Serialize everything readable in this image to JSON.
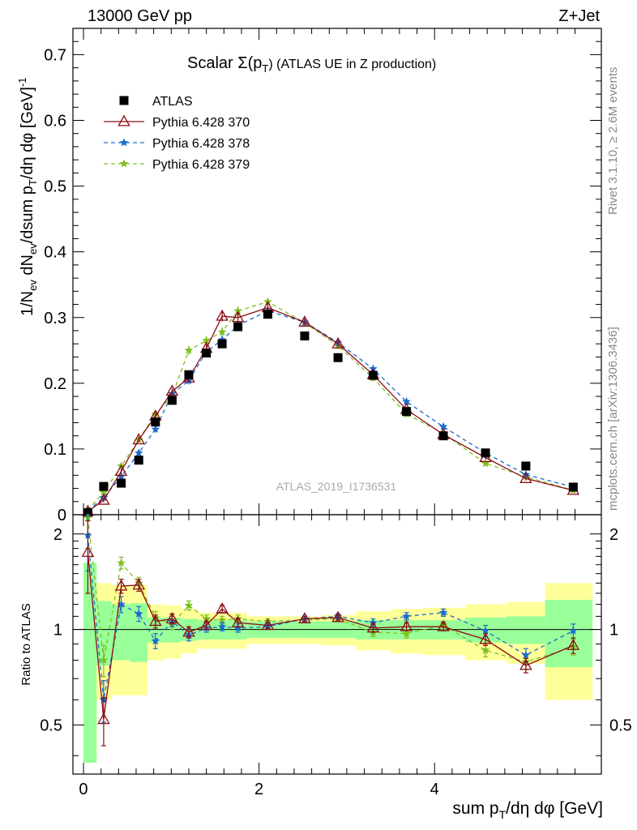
{
  "header": {
    "left": "13000 GeV pp",
    "right": "Z+Jet"
  },
  "chart_data": {
    "type": "scatter",
    "title": "Scalar Σ(pₜ) (ATLAS UE in Z production)",
    "title_main": "Scalar Σ(p",
    "title_sub": "T",
    "title_tail": ") (ATLAS UE in Z production)",
    "xlabel": "sum p",
    "xlabel_sub": "T",
    "xlabel_tail": "/dη dφ [GeV]",
    "ylabel": "1/N",
    "ylabel_parts": [
      "1/N",
      "ev",
      " dN",
      "ev",
      "/dsum p",
      "T",
      "/dη dφ  [GeV]",
      "-1"
    ],
    "ratio_ylabel": "Ratio to ATLAS",
    "watermark": "ATLAS_2019_I1736531",
    "side_label_top": "Rivet 3.1.10, ≥ 2.6M events",
    "side_label_bottom": "mcplots.cern.ch [arXiv:1306.3436]",
    "xlim": [
      -0.12,
      5.9
    ],
    "ylim": [
      0,
      0.74
    ],
    "ratio_ylim": [
      0.35,
      2.3
    ],
    "x_ticks": [
      "0",
      "2",
      "4"
    ],
    "y_ticks": [
      "0",
      "0.1",
      "0.2",
      "0.3",
      "0.4",
      "0.5",
      "0.6",
      "0.7"
    ],
    "ratio_ticks": [
      "0.5",
      "1",
      "2"
    ],
    "grid": false,
    "legend": "top-left",
    "x": [
      0.05,
      0.23,
      0.43,
      0.63,
      0.82,
      1.01,
      1.2,
      1.4,
      1.58,
      1.76,
      2.1,
      2.52,
      2.9,
      3.3,
      3.68,
      4.1,
      4.58,
      5.04,
      5.58
    ],
    "bin_edges": [
      0.0,
      0.15,
      0.32,
      0.53,
      0.73,
      0.92,
      1.11,
      1.3,
      1.5,
      1.67,
      1.86,
      2.34,
      2.71,
      3.1,
      3.5,
      3.87,
      4.35,
      4.82,
      5.26,
      5.8
    ],
    "series": [
      {
        "name": "ATLAS",
        "color": "#000000",
        "marker": "square",
        "values": [
          0.003,
          0.043,
          0.048,
          0.083,
          0.141,
          0.174,
          0.213,
          0.246,
          0.26,
          0.286,
          0.305,
          0.272,
          0.239,
          0.212,
          0.157,
          0.12,
          0.094,
          0.074,
          0.042
        ]
      },
      {
        "name": "Pythia 6.428 370",
        "color": "#8b0d16",
        "marker": "triangle",
        "line": "solid",
        "values": [
          0.005,
          0.022,
          0.066,
          0.114,
          0.15,
          0.188,
          0.208,
          0.253,
          0.302,
          0.3,
          0.315,
          0.293,
          0.26,
          0.213,
          0.16,
          0.122,
          0.087,
          0.055,
          0.037
        ],
        "errors": [
          0.002,
          0.003,
          0.004,
          0.004,
          0.005,
          0.005,
          0.006,
          0.006,
          0.008,
          0.008,
          0.006,
          0.006,
          0.005,
          0.005,
          0.004,
          0.004,
          0.003,
          0.003,
          0.002
        ]
      },
      {
        "name": "Pythia 6.428 378",
        "color": "#1a6ccf",
        "marker": "star",
        "line": "dashed",
        "values": [
          0.006,
          0.026,
          0.058,
          0.094,
          0.13,
          0.184,
          0.204,
          0.248,
          0.266,
          0.288,
          0.31,
          0.293,
          0.262,
          0.222,
          0.172,
          0.134,
          0.094,
          0.061,
          0.042
        ],
        "errors": [
          0.002,
          0.003,
          0.004,
          0.004,
          0.005,
          0.005,
          0.006,
          0.006,
          0.007,
          0.007,
          0.006,
          0.006,
          0.005,
          0.005,
          0.004,
          0.004,
          0.003,
          0.003,
          0.002
        ]
      },
      {
        "name": "Pythia 6.428 379",
        "color": "#7fbf1f",
        "marker": "star",
        "line": "dashed",
        "values": [
          0.007,
          0.034,
          0.074,
          0.114,
          0.153,
          0.181,
          0.25,
          0.265,
          0.278,
          0.31,
          0.324,
          0.292,
          0.257,
          0.208,
          0.153,
          0.124,
          0.078,
          0.058,
          0.037
        ],
        "errors": [
          0.002,
          0.003,
          0.004,
          0.004,
          0.005,
          0.005,
          0.007,
          0.007,
          0.007,
          0.007,
          0.006,
          0.006,
          0.005,
          0.005,
          0.004,
          0.004,
          0.003,
          0.003,
          0.002
        ]
      }
    ],
    "ratio_series": [
      {
        "name": "Pythia 6.428 370",
        "values": [
          1.75,
          0.52,
          1.37,
          1.38,
          1.06,
          1.08,
          0.98,
          1.03,
          1.16,
          1.05,
          1.03,
          1.08,
          1.09,
          1.01,
          1.02,
          1.02,
          0.93,
          0.77,
          0.89
        ],
        "errors": [
          0.45,
          0.09,
          0.07,
          0.06,
          0.05,
          0.04,
          0.04,
          0.03,
          0.03,
          0.03,
          0.02,
          0.02,
          0.02,
          0.03,
          0.03,
          0.03,
          0.04,
          0.04,
          0.05
        ]
      },
      {
        "name": "Pythia 6.428 378",
        "values": [
          1.98,
          0.6,
          1.2,
          1.12,
          0.92,
          1.06,
          0.96,
          1.01,
          1.02,
          1.01,
          1.02,
          1.08,
          1.1,
          1.05,
          1.1,
          1.13,
          0.99,
          0.83,
          0.99
        ],
        "errors": [
          0.45,
          0.09,
          0.07,
          0.06,
          0.05,
          0.04,
          0.04,
          0.03,
          0.03,
          0.03,
          0.02,
          0.02,
          0.02,
          0.03,
          0.03,
          0.03,
          0.04,
          0.04,
          0.05
        ]
      },
      {
        "name": "Pythia 6.428 379",
        "values": [
          2.25,
          0.8,
          1.62,
          1.4,
          1.09,
          1.04,
          1.19,
          1.08,
          1.07,
          1.08,
          1.06,
          1.07,
          1.08,
          0.98,
          0.97,
          1.03,
          0.86,
          0.79,
          0.88
        ],
        "errors": [
          0.45,
          0.09,
          0.07,
          0.06,
          0.05,
          0.04,
          0.04,
          0.03,
          0.03,
          0.03,
          0.02,
          0.02,
          0.02,
          0.03,
          0.03,
          0.03,
          0.04,
          0.04,
          0.05
        ]
      }
    ],
    "ratio_band_green": [
      0.62,
      0.23,
      0.2,
      0.21,
      0.09,
      0.09,
      0.08,
      0.07,
      0.07,
      0.07,
      0.06,
      0.06,
      0.06,
      0.07,
      0.07,
      0.07,
      0.09,
      0.1,
      0.24
    ],
    "ratio_band_yellow": [
      0.62,
      0.4,
      0.38,
      0.38,
      0.2,
      0.19,
      0.16,
      0.13,
      0.13,
      0.13,
      0.1,
      0.1,
      0.11,
      0.14,
      0.16,
      0.17,
      0.2,
      0.22,
      0.4
    ]
  }
}
